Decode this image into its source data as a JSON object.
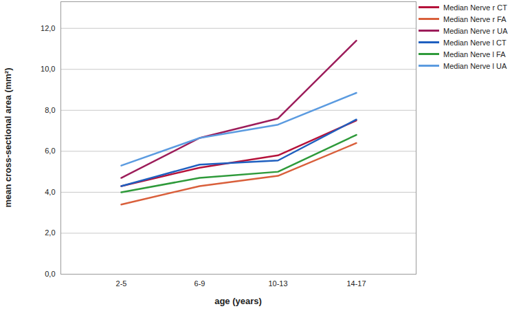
{
  "chart_data": {
    "type": "line",
    "x_label": "age (years)",
    "y_label": "mean cross-sectional area (mm²)",
    "categories": [
      "2-5",
      "6-9",
      "10-13",
      "14-17"
    ],
    "series": [
      {
        "name": "Median Nerve r CT",
        "color": "#b5123a",
        "values": [
          4.3,
          5.2,
          5.8,
          7.5
        ]
      },
      {
        "name": "Median Nerve r FA",
        "color": "#d95f3b",
        "values": [
          3.4,
          4.3,
          4.8,
          6.4
        ]
      },
      {
        "name": "Median Nerve r UA",
        "color": "#9c1c5a",
        "values": [
          4.7,
          6.65,
          7.6,
          11.4
        ]
      },
      {
        "name": "Median Nerve l CT",
        "color": "#1f5fbf",
        "values": [
          4.3,
          5.35,
          5.55,
          7.55
        ]
      },
      {
        "name": "Median Nerve l FA",
        "color": "#2e9a3a",
        "values": [
          4.0,
          4.7,
          5.0,
          6.8
        ]
      },
      {
        "name": "Median Nerve l UA",
        "color": "#5b9be0",
        "values": [
          5.3,
          6.65,
          7.3,
          8.85
        ]
      }
    ],
    "ylim": [
      0,
      13.3
    ],
    "yticks": [
      {
        "value": 0,
        "label": "0,0"
      },
      {
        "value": 2,
        "label": "2,0"
      },
      {
        "value": 4,
        "label": "4,0"
      },
      {
        "value": 6,
        "label": "6,0"
      },
      {
        "value": 8,
        "label": "8,0"
      },
      {
        "value": 10,
        "label": "10,0"
      },
      {
        "value": 12,
        "label": "12,0"
      }
    ],
    "grid": true,
    "legend": "right"
  }
}
